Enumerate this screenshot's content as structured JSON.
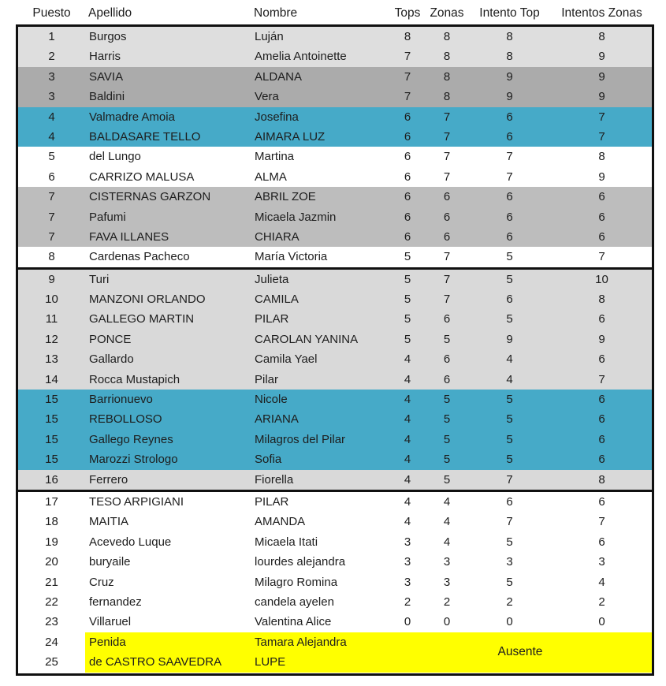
{
  "header": {
    "columns": [
      "Puesto",
      "Apellido",
      "Nombre",
      "Tops",
      "Zonas",
      "Intento Top",
      "Intentos Zonas"
    ]
  },
  "absent_label": "Ausente",
  "colors": {
    "white": "#ffffff",
    "light": "#dedede",
    "dark": "#ababab",
    "teal": "#46aac8",
    "mid": "#bdbdbd",
    "section": "#d9d9d9",
    "yellow": "#ffff00",
    "border": "#101010"
  },
  "sections": [
    {
      "rows": [
        {
          "puesto": "1",
          "apellido": "Burgos",
          "nombre": "Luján",
          "tops": "8",
          "zonas": "8",
          "intento_top": "8",
          "intentos_zonas": "8",
          "bg": "light"
        },
        {
          "puesto": "2",
          "apellido": "Harris",
          "nombre": "Amelia Antoinette",
          "tops": "7",
          "zonas": "8",
          "intento_top": "8",
          "intentos_zonas": "9",
          "bg": "light"
        },
        {
          "puesto": "3",
          "apellido": "SAVIA",
          "nombre": "ALDANA",
          "tops": "7",
          "zonas": "8",
          "intento_top": "9",
          "intentos_zonas": "9",
          "bg": "dark"
        },
        {
          "puesto": "3",
          "apellido": "Baldini",
          "nombre": "Vera",
          "tops": "7",
          "zonas": "8",
          "intento_top": "9",
          "intentos_zonas": "9",
          "bg": "dark"
        },
        {
          "puesto": "4",
          "apellido": "Valmadre Amoia",
          "nombre": "Josefina",
          "tops": "6",
          "zonas": "7",
          "intento_top": "6",
          "intentos_zonas": "7",
          "bg": "teal"
        },
        {
          "puesto": "4",
          "apellido": "BALDASARE TELLO",
          "nombre": "AIMARA LUZ",
          "tops": "6",
          "zonas": "7",
          "intento_top": "6",
          "intentos_zonas": "7",
          "bg": "teal"
        },
        {
          "puesto": "5",
          "apellido": "del Lungo",
          "nombre": "Martina",
          "tops": "6",
          "zonas": "7",
          "intento_top": "7",
          "intentos_zonas": "8",
          "bg": "white"
        },
        {
          "puesto": "6",
          "apellido": "CARRIZO MALUSA",
          "nombre": "ALMA",
          "tops": "6",
          "zonas": "7",
          "intento_top": "7",
          "intentos_zonas": "9",
          "bg": "white"
        },
        {
          "puesto": "7",
          "apellido": "CISTERNAS GARZON",
          "nombre": "ABRIL ZOE",
          "tops": "6",
          "zonas": "6",
          "intento_top": "6",
          "intentos_zonas": "6",
          "bg": "mid"
        },
        {
          "puesto": "7",
          "apellido": "Pafumi",
          "nombre": "Micaela Jazmin",
          "tops": "6",
          "zonas": "6",
          "intento_top": "6",
          "intentos_zonas": "6",
          "bg": "mid"
        },
        {
          "puesto": "7",
          "apellido": "FAVA ILLANES",
          "nombre": "CHIARA",
          "tops": "6",
          "zonas": "6",
          "intento_top": "6",
          "intentos_zonas": "6",
          "bg": "mid"
        },
        {
          "puesto": "8",
          "apellido": "Cardenas Pacheco",
          "nombre": "María Victoria",
          "tops": "5",
          "zonas": "7",
          "intento_top": "5",
          "intentos_zonas": "7",
          "bg": "white"
        }
      ]
    },
    {
      "rows": [
        {
          "puesto": "9",
          "apellido": "Turi",
          "nombre": "Julieta",
          "tops": "5",
          "zonas": "7",
          "intento_top": "5",
          "intentos_zonas": "10",
          "bg": "section"
        },
        {
          "puesto": "10",
          "apellido": "MANZONI ORLANDO",
          "nombre": "CAMILA",
          "tops": "5",
          "zonas": "7",
          "intento_top": "6",
          "intentos_zonas": "8",
          "bg": "section"
        },
        {
          "puesto": "11",
          "apellido": "GALLEGO MARTIN",
          "nombre": "PILAR",
          "tops": "5",
          "zonas": "6",
          "intento_top": "5",
          "intentos_zonas": "6",
          "bg": "section"
        },
        {
          "puesto": "12",
          "apellido": "PONCE",
          "nombre": "CAROLAN YANINA",
          "tops": "5",
          "zonas": "5",
          "intento_top": "9",
          "intentos_zonas": "9",
          "bg": "section"
        },
        {
          "puesto": "13",
          "apellido": "Gallardo",
          "nombre": "Camila Yael",
          "tops": "4",
          "zonas": "6",
          "intento_top": "4",
          "intentos_zonas": "6",
          "bg": "section"
        },
        {
          "puesto": "14",
          "apellido": "Rocca Mustapich",
          "nombre": "Pilar",
          "tops": "4",
          "zonas": "6",
          "intento_top": "4",
          "intentos_zonas": "7",
          "bg": "section"
        },
        {
          "puesto": "15",
          "apellido": "Barrionuevo",
          "nombre": "Nicole",
          "tops": "4",
          "zonas": "5",
          "intento_top": "5",
          "intentos_zonas": "6",
          "bg": "teal"
        },
        {
          "puesto": "15",
          "apellido": "REBOLLOSO",
          "nombre": "ARIANA",
          "tops": "4",
          "zonas": "5",
          "intento_top": "5",
          "intentos_zonas": "6",
          "bg": "teal"
        },
        {
          "puesto": "15",
          "apellido": "Gallego Reynes",
          "nombre": "Milagros del Pilar",
          "tops": "4",
          "zonas": "5",
          "intento_top": "5",
          "intentos_zonas": "6",
          "bg": "teal"
        },
        {
          "puesto": "15",
          "apellido": "Marozzi Strologo",
          "nombre": "Sofia",
          "tops": "4",
          "zonas": "5",
          "intento_top": "5",
          "intentos_zonas": "6",
          "bg": "teal"
        },
        {
          "puesto": "16",
          "apellido": "Ferrero",
          "nombre": "Fiorella",
          "tops": "4",
          "zonas": "5",
          "intento_top": "7",
          "intentos_zonas": "8",
          "bg": "section"
        }
      ]
    },
    {
      "rows": [
        {
          "puesto": "17",
          "apellido": "TESO ARPIGIANI",
          "nombre": "PILAR",
          "tops": "4",
          "zonas": "4",
          "intento_top": "6",
          "intentos_zonas": "6",
          "bg": "white"
        },
        {
          "puesto": "18",
          "apellido": "MAITIA",
          "nombre": "AMANDA",
          "tops": "4",
          "zonas": "4",
          "intento_top": "7",
          "intentos_zonas": "7",
          "bg": "white"
        },
        {
          "puesto": "19",
          "apellido": "Acevedo Luque",
          "nombre": "Micaela Itati",
          "tops": "3",
          "zonas": "4",
          "intento_top": "5",
          "intentos_zonas": "6",
          "bg": "white"
        },
        {
          "puesto": "20",
          "apellido": "buryaile",
          "nombre": "lourdes alejandra",
          "tops": "3",
          "zonas": "3",
          "intento_top": "3",
          "intentos_zonas": "3",
          "bg": "white"
        },
        {
          "puesto": "21",
          "apellido": "Cruz",
          "nombre": "Milagro Romina",
          "tops": "3",
          "zonas": "3",
          "intento_top": "5",
          "intentos_zonas": "4",
          "bg": "white"
        },
        {
          "puesto": "22",
          "apellido": "fernandez",
          "nombre": "candela ayelen",
          "tops": "2",
          "zonas": "2",
          "intento_top": "2",
          "intentos_zonas": "2",
          "bg": "white"
        },
        {
          "puesto": "23",
          "apellido": "Villaruel",
          "nombre": "Valentina Alice",
          "tops": "0",
          "zonas": "0",
          "intento_top": "0",
          "intentos_zonas": "0",
          "bg": "white"
        },
        {
          "puesto": "24",
          "apellido": "Penida",
          "nombre": "Tamara Alejandra",
          "tops": "",
          "zonas": "",
          "intento_top": "",
          "intentos_zonas": "",
          "bg": "yellow",
          "absent": true
        },
        {
          "puesto": "25",
          "apellido": "de CASTRO SAAVEDRA",
          "nombre": "LUPE",
          "tops": "",
          "zonas": "",
          "intento_top": "",
          "intentos_zonas": "",
          "bg": "yellow",
          "absent": true
        }
      ]
    }
  ]
}
